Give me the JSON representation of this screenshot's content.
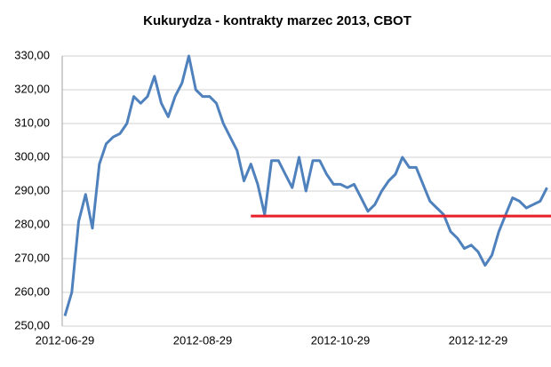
{
  "chart_data": {
    "type": "line",
    "title": "Kukurydza - kontrakty marzec 2013, CBOT",
    "categories": [
      "2012-06-29",
      null,
      null,
      null,
      null,
      null,
      null,
      null,
      null,
      null,
      null,
      null,
      null,
      null,
      null,
      null,
      null,
      null,
      null,
      null,
      "2012-08-29",
      null,
      null,
      null,
      null,
      null,
      null,
      null,
      null,
      null,
      null,
      null,
      null,
      null,
      null,
      null,
      null,
      null,
      null,
      null,
      "2012-10-29",
      null,
      null,
      null,
      null,
      null,
      null,
      null,
      null,
      null,
      null,
      null,
      null,
      null,
      null,
      null,
      null,
      null,
      null,
      null,
      "2012-12-29",
      null,
      null,
      null,
      null,
      null,
      null,
      null,
      null,
      null,
      null
    ],
    "series": [
      {
        "color": "#4f81bd",
        "values": [
          253,
          260,
          281,
          289,
          279,
          298,
          304,
          306,
          307,
          310,
          318,
          316,
          318,
          324,
          316,
          312,
          318,
          322,
          330,
          320,
          318,
          318,
          316,
          310,
          306,
          302,
          293,
          298,
          292,
          283,
          299,
          299,
          295,
          291,
          300,
          290,
          299,
          299,
          295,
          292,
          292,
          291,
          292,
          288,
          284,
          286,
          290,
          293,
          295,
          300,
          297,
          297,
          292,
          287,
          285,
          283,
          278,
          276,
          273,
          274,
          272,
          268,
          271,
          278,
          283,
          288,
          287,
          285,
          286,
          287,
          291
        ]
      }
    ],
    "ylim": [
      250,
      330
    ],
    "yticks": [
      {
        "value": 250,
        "label": "250,00"
      },
      {
        "value": 260,
        "label": "260,00"
      },
      {
        "value": 270,
        "label": "270,00"
      },
      {
        "value": 280,
        "label": "280,00"
      },
      {
        "value": 290,
        "label": "290,00"
      },
      {
        "value": 300,
        "label": "300,00"
      },
      {
        "value": 310,
        "label": "310,00"
      },
      {
        "value": 320,
        "label": "320,00"
      },
      {
        "value": 330,
        "label": "330,00"
      }
    ],
    "grid": true,
    "hline": {
      "value": 282.6,
      "start": 27,
      "color": "#e8202a"
    }
  }
}
